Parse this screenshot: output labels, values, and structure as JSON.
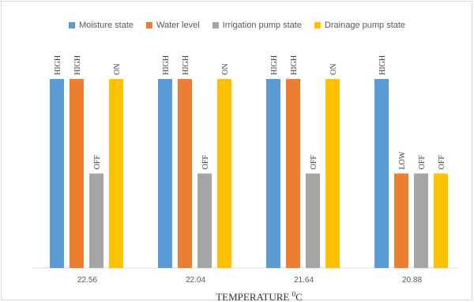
{
  "chart_data": {
    "type": "bar",
    "categories": [
      "22.56",
      "22.04",
      "21.64",
      "20.88"
    ],
    "xlabel_main": "TEMPERATURE ",
    "xlabel_sup": "0",
    "xlabel_unit": "C",
    "level_values": {
      "HIGH": 2,
      "ON": 2,
      "LOW": 1,
      "OFF": 1
    },
    "series": [
      {
        "name": "Moisture state",
        "color": "#5b9bd5",
        "labels": [
          "HIGH",
          "HIGH",
          "HIGH",
          "HIGH"
        ],
        "values": [
          2,
          2,
          2,
          2
        ]
      },
      {
        "name": "Water level",
        "color": "#ed7d31",
        "labels": [
          "HIGH",
          "HIGH",
          "HIGH",
          "LOW"
        ],
        "values": [
          2,
          2,
          2,
          1
        ]
      },
      {
        "name": "Irrigation pump state",
        "color": "#a5a5a5",
        "labels": [
          "OFF",
          "OFF",
          "OFF",
          "OFF"
        ],
        "values": [
          1,
          1,
          1,
          1
        ]
      },
      {
        "name": "Drainage pump state",
        "color": "#ffc000",
        "labels": [
          "ON",
          "ON",
          "ON",
          "OFF"
        ],
        "values": [
          2,
          2,
          2,
          1
        ]
      }
    ],
    "ylim": [
      0,
      2.3
    ],
    "grid": false,
    "legend_position": "top"
  }
}
